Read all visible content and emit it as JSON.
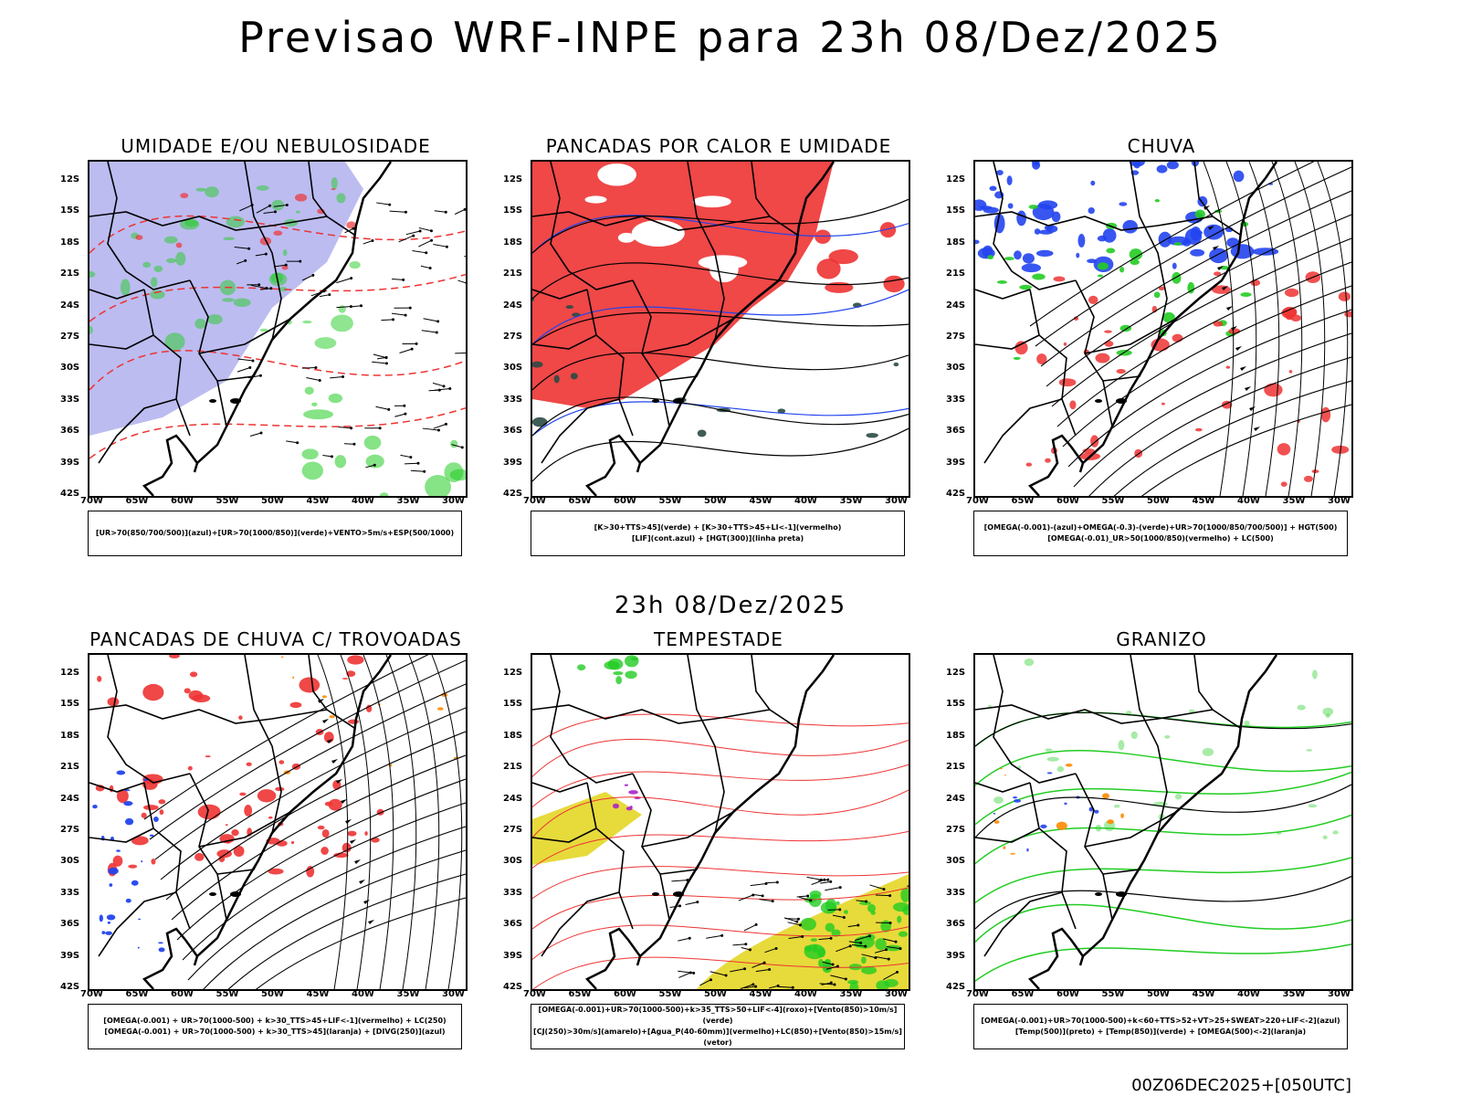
{
  "title": "Previsao WRF-INPE  para 23h 08/Dez/2025",
  "mid_title": "23h 08/Dez/2025",
  "footer": "00Z06DEC2025+[050UTC]",
  "lat_labels": [
    "12S",
    "15S",
    "18S",
    "21S",
    "24S",
    "27S",
    "30S",
    "33S",
    "36S",
    "39S",
    "42S"
  ],
  "lon_labels": [
    "70W",
    "65W",
    "60W",
    "55W",
    "50W",
    "45W",
    "40W",
    "35W",
    "30W"
  ],
  "panels": [
    {
      "title": "UMIDADE E/OU NEBULOSIDADE",
      "legend": [
        "[UR>70(850/700/500)](azul)+[UR>70(1000/850)](verde)+VENTO>5m/s+ESP(500/1000)"
      ]
    },
    {
      "title": "PANCADAS POR CALOR E UMIDADE",
      "legend": [
        "[K>30+TTS>45](verde) + [K>30+TTS>45+LI<-1](vermelho)",
        "[LIF](cont.azul) + [HGT(300)](linha preta)"
      ]
    },
    {
      "title": "CHUVA",
      "legend": [
        "[OMEGA(-0.001)-(azul)+OMEGA(-0.3)-(verde)+UR>70(1000/850/700/500)] + HGT(500)",
        "[OMEGA(-0.01)_UR>50(1000/850)(vermelho) + LC(500)"
      ]
    },
    {
      "title": "PANCADAS DE CHUVA C/ TROVOADAS",
      "legend": [
        "[OMEGA(-0.001) + UR>70(1000-500) + k>30_TTS>45+LIF<-1](vermelho) + LC(250)",
        "[OMEGA(-0.001) + UR>70(1000-500) + k>30_TTS>45](laranja) + [DIVG(250)](azul)"
      ]
    },
    {
      "title": "TEMPESTADE",
      "legend": [
        "[OMEGA(-0.001)+UR>70(1000-500)+k>35_TTS>50+LIF<-4](roxo)+[Vento(850)>10m/s](verde)",
        "[CJ(250)>30m/s](amarelo)+[Agua_P(40-60mm)](vermelho)+LC(850)+[Vento(850)>15m/s](vetor)"
      ]
    },
    {
      "title": "GRANIZO",
      "legend": [
        "[OMEGA(-0.001)+UR>70(1000-500)+k<60+TTS>52+VT>25+SWEAT>220+LIF<-2](azul)",
        "[Temp(500)](preto) + [Temp(850)](verde) + [OMEGA(500)<-2](laranja)"
      ]
    }
  ],
  "colors": {
    "blue_fill": "#b0b0ee",
    "green": "#22cc22",
    "red": "#ee3333",
    "blue": "#2244ee",
    "yellow": "#e6d830",
    "purple": "#aa22cc",
    "orange": "#ff8800",
    "dark": "#2a4a44"
  }
}
